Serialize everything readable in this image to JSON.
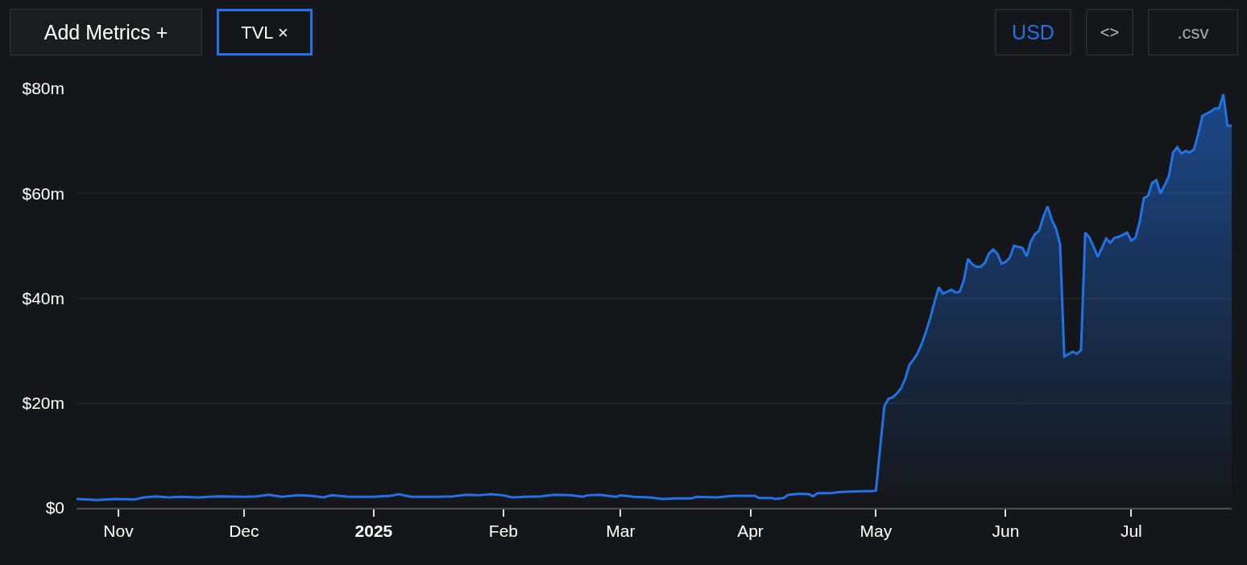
{
  "chart_data": {
    "type": "area",
    "color": "#2172e5",
    "annotations": [
      "Add Metrics +",
      "TVL ×",
      "USD",
      "<>",
      ".csv"
    ],
    "x": [
      "2024-10-22",
      "2024-10-27",
      "2024-10-31",
      "2024-11-05",
      "2024-11-07",
      "2024-11-10",
      "2024-11-13",
      "2024-11-16",
      "2024-11-20",
      "2024-11-25",
      "2024-12-01",
      "2024-12-04",
      "2024-12-07",
      "2024-12-10",
      "2024-12-14",
      "2024-12-17",
      "2024-12-20",
      "2024-12-22",
      "2024-12-26",
      "2025-01-01",
      "2025-01-05",
      "2025-01-07",
      "2025-01-10",
      "2025-01-16",
      "2025-01-20",
      "2025-01-23",
      "2025-01-26",
      "2025-01-29",
      "2025-02-01",
      "2025-02-03",
      "2025-02-06",
      "2025-02-10",
      "2025-02-13",
      "2025-02-17",
      "2025-02-20",
      "2025-02-21",
      "2025-02-24",
      "2025-02-28",
      "2025-03-01",
      "2025-03-04",
      "2025-03-08",
      "2025-03-11",
      "2025-03-14",
      "2025-03-18",
      "2025-03-19",
      "2025-03-24",
      "2025-03-28",
      "2025-04-02",
      "2025-04-03",
      "2025-04-06",
      "2025-04-07",
      "2025-04-09",
      "2025-04-10",
      "2025-04-13",
      "2025-04-15",
      "2025-04-16",
      "2025-04-17",
      "2025-04-20",
      "2025-04-22",
      "2025-04-25",
      "2025-04-28",
      "2025-04-30",
      "2025-05-01",
      "2025-05-02",
      "2025-05-03",
      "2025-05-04",
      "2025-05-05",
      "2025-05-06",
      "2025-05-07",
      "2025-05-08",
      "2025-05-09",
      "2025-05-10",
      "2025-05-11",
      "2025-05-12",
      "2025-05-13",
      "2025-05-14",
      "2025-05-15",
      "2025-05-16",
      "2025-05-17",
      "2025-05-18",
      "2025-05-19",
      "2025-05-20",
      "2025-05-21",
      "2025-05-22",
      "2025-05-23",
      "2025-05-24",
      "2025-05-25",
      "2025-05-26",
      "2025-05-27",
      "2025-05-28",
      "2025-05-29",
      "2025-05-30",
      "2025-05-31",
      "2025-06-01",
      "2025-06-02",
      "2025-06-03",
      "2025-06-04",
      "2025-06-05",
      "2025-06-06",
      "2025-06-07",
      "2025-06-08",
      "2025-06-09",
      "2025-06-10",
      "2025-06-11",
      "2025-06-12",
      "2025-06-13",
      "2025-06-14",
      "2025-06-15",
      "2025-06-16",
      "2025-06-17",
      "2025-06-18",
      "2025-06-19",
      "2025-06-20",
      "2025-06-21",
      "2025-06-22",
      "2025-06-23",
      "2025-06-24",
      "2025-06-25",
      "2025-06-26",
      "2025-06-27",
      "2025-06-28",
      "2025-06-29",
      "2025-06-30",
      "2025-07-01",
      "2025-07-02",
      "2025-07-03",
      "2025-07-04",
      "2025-07-05",
      "2025-07-06",
      "2025-07-07",
      "2025-07-08",
      "2025-07-09",
      "2025-07-10",
      "2025-07-11",
      "2025-07-12",
      "2025-07-13",
      "2025-07-14",
      "2025-07-15",
      "2025-07-16",
      "2025-07-17",
      "2025-07-18",
      "2025-07-19",
      "2025-07-20",
      "2025-07-21",
      "2025-07-22",
      "2025-07-23",
      "2025-07-24",
      "2025-07-25"
    ],
    "values": [
      1.7,
      1.5,
      1.7,
      1.6,
      2.0,
      2.2,
      2.0,
      2.1,
      2.0,
      2.2,
      2.1,
      2.2,
      2.5,
      2.1,
      2.4,
      2.3,
      2.0,
      2.4,
      2.1,
      2.1,
      2.3,
      2.6,
      2.1,
      2.1,
      2.2,
      2.5,
      2.4,
      2.6,
      2.4,
      2.0,
      2.1,
      2.2,
      2.5,
      2.4,
      2.1,
      2.4,
      2.5,
      2.1,
      2.4,
      2.1,
      2.0,
      1.7,
      1.8,
      1.8,
      2.1,
      2.0,
      2.3,
      2.3,
      1.9,
      1.9,
      1.7,
      1.9,
      2.5,
      2.7,
      2.6,
      2.2,
      2.8,
      2.8,
      3.0,
      3.1,
      3.2,
      3.2,
      3.3,
      11.4,
      19.4,
      20.8,
      21.1,
      21.8,
      22.8,
      24.6,
      27.3,
      28.3,
      29.6,
      31.4,
      33.7,
      36.3,
      39.3,
      42.1,
      40.9,
      41.2,
      41.6,
      41.1,
      41.2,
      43.4,
      47.5,
      46.5,
      46.0,
      46.0,
      46.7,
      48.5,
      49.3,
      48.5,
      46.6,
      46.9,
      47.8,
      50.0,
      49.8,
      49.6,
      48.0,
      50.8,
      52.2,
      52.9,
      55.5,
      57.5,
      55.0,
      53.3,
      50.3,
      28.9,
      29.3,
      29.8,
      29.4,
      30.1,
      52.5,
      51.6,
      49.8,
      47.9,
      49.6,
      51.4,
      50.6,
      51.5,
      51.7,
      52.1,
      52.5,
      51.0,
      51.5,
      54.5,
      59.1,
      59.5,
      62.0,
      62.5,
      60.0,
      61.6,
      63.3,
      67.8,
      68.8,
      67.6,
      68.1,
      67.8,
      68.4,
      71.3,
      74.8,
      75.2,
      75.6,
      76.2,
      76.2,
      78.9,
      72.9,
      72.9
    ],
    "xlim": [
      "2024-10-22",
      "2025-07-25"
    ],
    "xticks": [
      {
        "value": "2024-11-01",
        "label": "Nov"
      },
      {
        "value": "2024-12-01",
        "label": "Dec"
      },
      {
        "value": "2025-01-01",
        "label": "2025"
      },
      {
        "value": "2025-02-01",
        "label": "Feb"
      },
      {
        "value": "2025-03-01",
        "label": "Mar"
      },
      {
        "value": "2025-04-01",
        "label": "Apr"
      },
      {
        "value": "2025-05-01",
        "label": "May"
      },
      {
        "value": "2025-06-01",
        "label": "Jun"
      },
      {
        "value": "2025-07-01",
        "label": "Jul"
      }
    ],
    "ylim": [
      0,
      80
    ],
    "yticks": [
      {
        "value": 0,
        "label": "$0"
      },
      {
        "value": 20,
        "label": "$20m"
      },
      {
        "value": 40,
        "label": "$40m"
      },
      {
        "value": 60,
        "label": "$60m"
      },
      {
        "value": 80,
        "label": "$80m"
      }
    ],
    "grid": "y"
  }
}
